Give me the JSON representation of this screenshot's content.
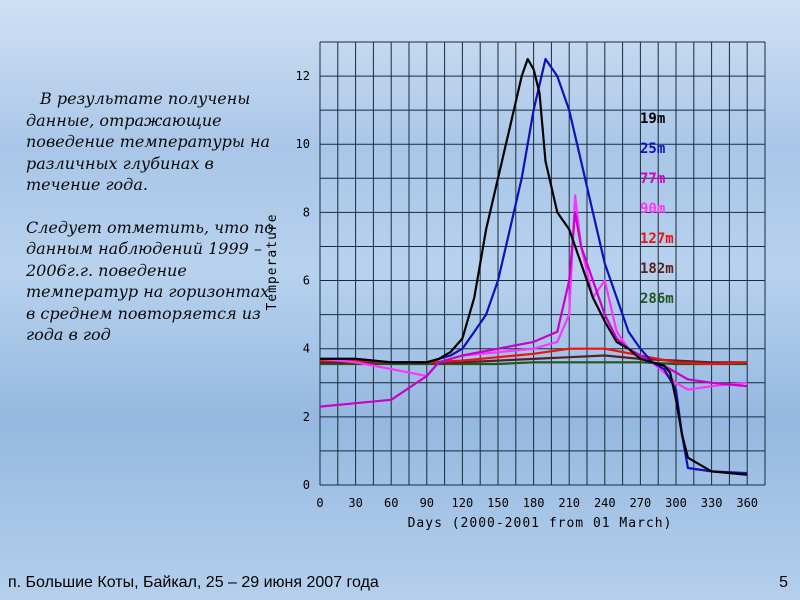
{
  "slide": {
    "paragraph1": "В результате получены данные, отражающие поведение температуры на различных глубинах в течение года.",
    "paragraph2": "Следует отметить, что по данным наблюдений 1999 – 2006г.г. поведение температур на горизонтах в среднем повторяется из года в год",
    "footer": "п. Большие Коты, Байкал,  25 – 29 июня 2007  года",
    "page_number": "5"
  },
  "chart_data": {
    "type": "line",
    "title": "",
    "xlabel": "Days (2000-2001 from 01 March)",
    "ylabel": "Temperature",
    "xlim": [
      0,
      375
    ],
    "ylim": [
      0,
      13
    ],
    "grid": true,
    "legend_position": "right",
    "x_ticks": [
      "0",
      "30",
      "60",
      "90",
      "120",
      "150",
      "180",
      "210",
      "240",
      "270",
      "300",
      "330",
      "360"
    ],
    "y_ticks": [
      "0",
      "2",
      "4",
      "6",
      "8",
      "10",
      "12"
    ],
    "series": [
      {
        "name": "19m",
        "color": "#000000",
        "x": [
          0,
          30,
          60,
          90,
          100,
          110,
          120,
          130,
          140,
          150,
          160,
          170,
          175,
          180,
          185,
          190,
          200,
          210,
          220,
          230,
          240,
          250,
          260,
          270,
          280,
          290,
          295,
          300,
          305,
          310,
          330,
          360
        ],
        "y": [
          3.7,
          3.7,
          3.6,
          3.6,
          3.7,
          3.9,
          4.3,
          5.5,
          7.5,
          9.0,
          10.5,
          12.0,
          12.5,
          12.2,
          11.5,
          9.5,
          8.0,
          7.5,
          6.5,
          5.5,
          4.8,
          4.2,
          4.0,
          3.7,
          3.6,
          3.5,
          3.3,
          2.5,
          1.5,
          0.8,
          0.4,
          0.3
        ]
      },
      {
        "name": "25m",
        "color": "#1111bb",
        "x": [
          0,
          30,
          60,
          90,
          100,
          110,
          120,
          130,
          140,
          150,
          160,
          170,
          180,
          190,
          200,
          210,
          220,
          230,
          240,
          250,
          260,
          270,
          280,
          290,
          300,
          305,
          310,
          330,
          360
        ],
        "y": [
          3.7,
          3.7,
          3.6,
          3.6,
          3.7,
          3.8,
          4.0,
          4.5,
          5.0,
          6.0,
          7.5,
          9.0,
          11.0,
          12.5,
          12.0,
          11.0,
          9.5,
          8.0,
          6.5,
          5.5,
          4.5,
          4.0,
          3.6,
          3.4,
          2.8,
          1.5,
          0.5,
          0.4,
          0.35
        ]
      },
      {
        "name": "77m",
        "color": "#cc00cc",
        "x": [
          0,
          30,
          60,
          90,
          100,
          110,
          120,
          150,
          180,
          200,
          210,
          215,
          220,
          230,
          240,
          250,
          260,
          270,
          280,
          290,
          300,
          310,
          330,
          360
        ],
        "y": [
          2.3,
          2.4,
          2.5,
          3.2,
          3.6,
          3.7,
          3.8,
          4.0,
          4.2,
          4.5,
          6.0,
          8.0,
          7.0,
          6.0,
          5.0,
          4.3,
          4.0,
          3.8,
          3.6,
          3.5,
          3.3,
          3.1,
          3.0,
          2.9
        ]
      },
      {
        "name": "90m",
        "color": "#ff33ff",
        "x": [
          0,
          30,
          60,
          90,
          100,
          120,
          150,
          180,
          200,
          210,
          215,
          220,
          230,
          240,
          250,
          260,
          270,
          280,
          290,
          300,
          310,
          330,
          360
        ],
        "y": [
          3.7,
          3.6,
          3.4,
          3.2,
          3.6,
          3.8,
          3.9,
          4.0,
          4.2,
          5.0,
          8.5,
          7.0,
          5.5,
          6.0,
          4.5,
          4.0,
          3.8,
          3.6,
          3.3,
          3.0,
          2.8,
          2.9,
          3.0
        ]
      },
      {
        "name": "127m",
        "color": "#ee1111",
        "x": [
          0,
          30,
          60,
          90,
          120,
          150,
          180,
          210,
          240,
          270,
          300,
          330,
          360
        ],
        "y": [
          3.65,
          3.65,
          3.6,
          3.6,
          3.65,
          3.75,
          3.85,
          4.0,
          4.0,
          3.8,
          3.6,
          3.55,
          3.6
        ]
      },
      {
        "name": "182m",
        "color": "#552222",
        "x": [
          0,
          30,
          60,
          90,
          120,
          150,
          180,
          210,
          240,
          270,
          300,
          330,
          360
        ],
        "y": [
          3.6,
          3.6,
          3.6,
          3.6,
          3.6,
          3.65,
          3.7,
          3.75,
          3.8,
          3.7,
          3.65,
          3.6,
          3.6
        ]
      },
      {
        "name": "286m",
        "color": "#225522",
        "x": [
          0,
          30,
          60,
          90,
          120,
          150,
          180,
          210,
          240,
          270,
          300,
          330,
          360
        ],
        "y": [
          3.55,
          3.55,
          3.55,
          3.55,
          3.55,
          3.55,
          3.6,
          3.6,
          3.6,
          3.6,
          3.55,
          3.55,
          3.55
        ]
      }
    ]
  }
}
